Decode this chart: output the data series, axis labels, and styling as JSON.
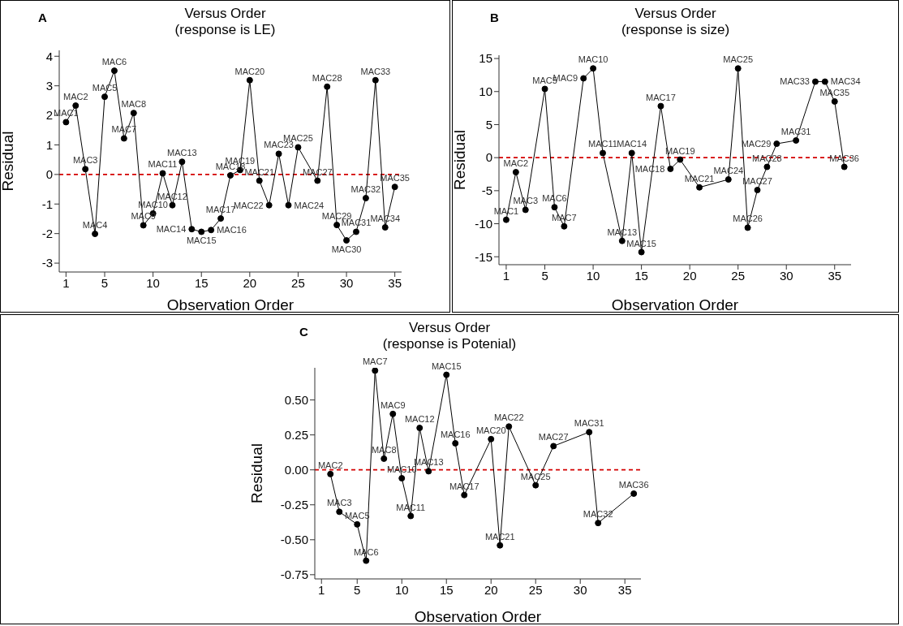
{
  "chart_data": [
    {
      "type": "line",
      "title": "Versus Order",
      "subtitle": "(response is LE)",
      "xlabel": "Observation Order",
      "ylabel": "Residual",
      "color": "#000000",
      "marker": "circle",
      "line_style": "solid",
      "x": [
        1,
        2,
        3,
        4,
        5,
        6,
        7,
        8,
        9,
        10,
        11,
        12,
        13,
        14,
        15,
        16,
        17,
        18,
        19,
        20,
        21,
        22,
        23,
        24,
        25,
        27,
        28,
        29,
        30,
        31,
        32,
        33,
        34,
        35
      ],
      "values": [
        1.77,
        2.33,
        0.18,
        -2.01,
        2.63,
        3.51,
        1.22,
        2.08,
        -1.72,
        -1.32,
        0.04,
        -1.04,
        0.43,
        -1.85,
        -1.94,
        -1.88,
        -1.49,
        -0.03,
        0.15,
        3.19,
        -0.21,
        -1.04,
        0.7,
        -1.04,
        0.92,
        -0.21,
        2.97,
        -1.71,
        -2.23,
        -1.94,
        -0.8,
        3.19,
        -1.79,
        -0.42
      ],
      "xlim": [
        0.3,
        35.7
      ],
      "xticks": [
        1,
        5,
        10,
        15,
        20,
        25,
        30,
        35
      ],
      "ylim": [
        -3.3,
        4.2
      ],
      "yticks": [
        -3,
        -2,
        -1,
        0,
        1,
        2,
        3,
        4
      ],
      "ref_lines": [
        {
          "axis": "y",
          "value": 0,
          "color": "#d40000",
          "line_style": "dashed"
        }
      ],
      "annotations": [
        "A",
        {
          "text": "MAC1",
          "x": 1,
          "y": 1.77
        },
        {
          "text": "MAC2",
          "x": 2,
          "y": 2.33
        },
        {
          "text": "MAC3",
          "x": 3,
          "y": 0.18
        },
        {
          "text": "MAC4",
          "x": 4,
          "y": -2.01
        },
        {
          "text": "MAC5",
          "x": 5,
          "y": 2.63
        },
        {
          "text": "MAC6",
          "x": 6,
          "y": 3.51
        },
        {
          "text": "MAC7",
          "x": 7,
          "y": 1.22
        },
        {
          "text": "MAC8",
          "x": 8,
          "y": 2.08
        },
        {
          "text": "MAC9",
          "x": 9,
          "y": -1.72
        },
        {
          "text": "MAC10",
          "x": 10,
          "y": -1.32
        },
        {
          "text": "MAC11",
          "x": 11,
          "y": 0.04
        },
        {
          "text": "MAC12",
          "x": 12,
          "y": -1.04
        },
        {
          "text": "MAC13",
          "x": 13,
          "y": 0.43
        },
        {
          "text": "MAC14",
          "x": 14,
          "y": -1.85
        },
        {
          "text": "MAC15",
          "x": 15,
          "y": -1.94
        },
        {
          "text": "MAC16",
          "x": 16,
          "y": -1.88
        },
        {
          "text": "MAC17",
          "x": 17,
          "y": -1.49
        },
        {
          "text": "MAC18",
          "x": 18,
          "y": -0.03
        },
        {
          "text": "MAC19",
          "x": 19,
          "y": 0.15
        },
        {
          "text": "MAC20",
          "x": 20,
          "y": 3.19
        },
        {
          "text": "MAC21",
          "x": 21,
          "y": -0.21
        },
        {
          "text": "MAC22",
          "x": 22,
          "y": -1.04
        },
        {
          "text": "MAC23",
          "x": 23,
          "y": 0.7
        },
        {
          "text": "MAC24",
          "x": 24,
          "y": -1.04
        },
        {
          "text": "MAC25",
          "x": 25,
          "y": 0.92
        },
        {
          "text": "MAC27",
          "x": 27,
          "y": -0.21
        },
        {
          "text": "MAC28",
          "x": 28,
          "y": 2.97
        },
        {
          "text": "MAC29",
          "x": 29,
          "y": -1.71
        },
        {
          "text": "MAC30",
          "x": 30,
          "y": -2.23
        },
        {
          "text": "MAC31",
          "x": 31,
          "y": -1.94
        },
        {
          "text": "MAC32",
          "x": 32,
          "y": -0.8
        },
        {
          "text": "MAC33",
          "x": 33,
          "y": 3.19
        },
        {
          "text": "MAC34",
          "x": 34,
          "y": -1.79
        },
        {
          "text": "MAC35",
          "x": 35,
          "y": -0.42
        }
      ]
    },
    {
      "type": "line",
      "title": "Versus Order",
      "subtitle": "(response is size)",
      "xlabel": "Observation Order",
      "ylabel": "Residual",
      "color": "#000000",
      "marker": "circle",
      "line_style": "solid",
      "x": [
        1,
        2,
        3,
        5,
        6,
        7,
        9,
        10,
        11,
        13,
        14,
        15,
        17,
        18,
        19,
        21,
        24,
        25,
        26,
        27,
        28,
        29,
        31,
        33,
        34,
        35,
        36
      ],
      "values": [
        -9.4,
        -2.2,
        -7.9,
        10.4,
        -7.5,
        -10.4,
        12.0,
        13.5,
        0.7,
        -12.6,
        0.7,
        -14.3,
        7.8,
        -1.7,
        -0.3,
        -4.5,
        -3.3,
        13.5,
        -10.6,
        -4.9,
        -1.4,
        2.1,
        2.6,
        11.5,
        11.5,
        8.5,
        -1.4
      ],
      "xlim": [
        0.25,
        36.7
      ],
      "xticks": [
        1,
        5,
        10,
        15,
        20,
        25,
        30,
        35
      ],
      "ylim": [
        -16.2,
        15.5
      ],
      "yticks": [
        -15,
        -10,
        -5,
        0,
        5,
        10,
        15
      ],
      "ref_lines": [
        {
          "axis": "y",
          "value": 0,
          "color": "#d40000",
          "line_style": "dashed"
        }
      ],
      "annotations": [
        "B",
        {
          "text": "MAC1",
          "x": 1,
          "y": -9.4
        },
        {
          "text": "MAC2",
          "x": 2,
          "y": -2.2
        },
        {
          "text": "MAC3",
          "x": 3,
          "y": -7.9
        },
        {
          "text": "MAC5",
          "x": 5,
          "y": 10.4
        },
        {
          "text": "MAC6",
          "x": 6,
          "y": -7.5
        },
        {
          "text": "MAC7",
          "x": 7,
          "y": -10.4
        },
        {
          "text": "MAC9",
          "x": 9,
          "y": 12.0
        },
        {
          "text": "MAC10",
          "x": 10,
          "y": 13.5
        },
        {
          "text": "MAC11",
          "x": 11,
          "y": 0.7
        },
        {
          "text": "MAC13",
          "x": 13,
          "y": -12.6
        },
        {
          "text": "MAC14",
          "x": 14,
          "y": 0.7
        },
        {
          "text": "MAC15",
          "x": 15,
          "y": -14.3
        },
        {
          "text": "MAC17",
          "x": 17,
          "y": 7.8
        },
        {
          "text": "MAC18",
          "x": 18,
          "y": -1.7
        },
        {
          "text": "MAC19",
          "x": 19,
          "y": -0.3
        },
        {
          "text": "MAC21",
          "x": 21,
          "y": -4.5
        },
        {
          "text": "MAC24",
          "x": 24,
          "y": -3.3
        },
        {
          "text": "MAC25",
          "x": 25,
          "y": 13.5
        },
        {
          "text": "MAC26",
          "x": 26,
          "y": -10.6
        },
        {
          "text": "MAC27",
          "x": 27,
          "y": -4.9
        },
        {
          "text": "MAC28",
          "x": 28,
          "y": -1.4
        },
        {
          "text": "MAC29",
          "x": 29,
          "y": 2.1
        },
        {
          "text": "MAC31",
          "x": 31,
          "y": 2.6
        },
        {
          "text": "MAC33",
          "x": 33,
          "y": 11.5
        },
        {
          "text": "MAC34",
          "x": 34,
          "y": 11.5
        },
        {
          "text": "MAC35",
          "x": 35,
          "y": 8.5
        },
        {
          "text": "MAC36",
          "x": 36,
          "y": -1.4
        }
      ]
    },
    {
      "type": "line",
      "title": "Versus Order",
      "subtitle": "(response is Potenial)",
      "xlabel": "Observation Order",
      "ylabel": "Residual",
      "color": "#000000",
      "marker": "circle",
      "line_style": "solid",
      "x": [
        2,
        3,
        5,
        6,
        7,
        8,
        9,
        10,
        11,
        12,
        13,
        15,
        16,
        17,
        20,
        21,
        22,
        25,
        27,
        31,
        32,
        36
      ],
      "values": [
        -0.03,
        -0.3,
        -0.39,
        -0.65,
        0.71,
        0.08,
        0.4,
        -0.06,
        -0.33,
        0.3,
        -0.01,
        0.68,
        0.19,
        -0.18,
        0.22,
        -0.54,
        0.31,
        -0.11,
        0.17,
        0.27,
        -0.38,
        -0.17
      ],
      "xlim": [
        0.25,
        36.8
      ],
      "xticks": [
        1,
        5,
        10,
        15,
        20,
        25,
        30,
        35
      ],
      "ylim": [
        -0.78,
        0.73
      ],
      "yticks": [
        {
          "value": -0.75,
          "label": "-0.75"
        },
        {
          "value": -0.5,
          "label": "-0.50"
        },
        {
          "value": -0.25,
          "label": "-0.25"
        },
        {
          "value": 0,
          "label": "0.00"
        },
        {
          "value": 0.25,
          "label": "0.25"
        },
        {
          "value": 0.5,
          "label": "0.50"
        }
      ],
      "ref_lines": [
        {
          "axis": "y",
          "value": 0,
          "color": "#d40000",
          "line_style": "dashed"
        }
      ],
      "annotations": [
        "C",
        {
          "text": "MAC2",
          "x": 2,
          "y": -0.03
        },
        {
          "text": "MAC3",
          "x": 3,
          "y": -0.3
        },
        {
          "text": "MAC5",
          "x": 5,
          "y": -0.39
        },
        {
          "text": "MAC6",
          "x": 6,
          "y": -0.65
        },
        {
          "text": "MAC7",
          "x": 7,
          "y": 0.71
        },
        {
          "text": "MAC8",
          "x": 8,
          "y": 0.08
        },
        {
          "text": "MAC9",
          "x": 9,
          "y": 0.4
        },
        {
          "text": "MAC10",
          "x": 10,
          "y": -0.06
        },
        {
          "text": "MAC11",
          "x": 11,
          "y": -0.33
        },
        {
          "text": "MAC12",
          "x": 12,
          "y": 0.3
        },
        {
          "text": "MAC13",
          "x": 13,
          "y": -0.01
        },
        {
          "text": "MAC15",
          "x": 15,
          "y": 0.68
        },
        {
          "text": "MAC16",
          "x": 16,
          "y": 0.19
        },
        {
          "text": "MAC17",
          "x": 17,
          "y": -0.18
        },
        {
          "text": "MAC20",
          "x": 20,
          "y": 0.22
        },
        {
          "text": "MAC21",
          "x": 21,
          "y": -0.54
        },
        {
          "text": "MAC22",
          "x": 22,
          "y": 0.31
        },
        {
          "text": "MAC25",
          "x": 25,
          "y": -0.11
        },
        {
          "text": "MAC27",
          "x": 27,
          "y": 0.17
        },
        {
          "text": "MAC31",
          "x": 31,
          "y": 0.27
        },
        {
          "text": "MAC32",
          "x": 32,
          "y": -0.38
        },
        {
          "text": "MAC36",
          "x": 36,
          "y": -0.17
        }
      ]
    }
  ]
}
